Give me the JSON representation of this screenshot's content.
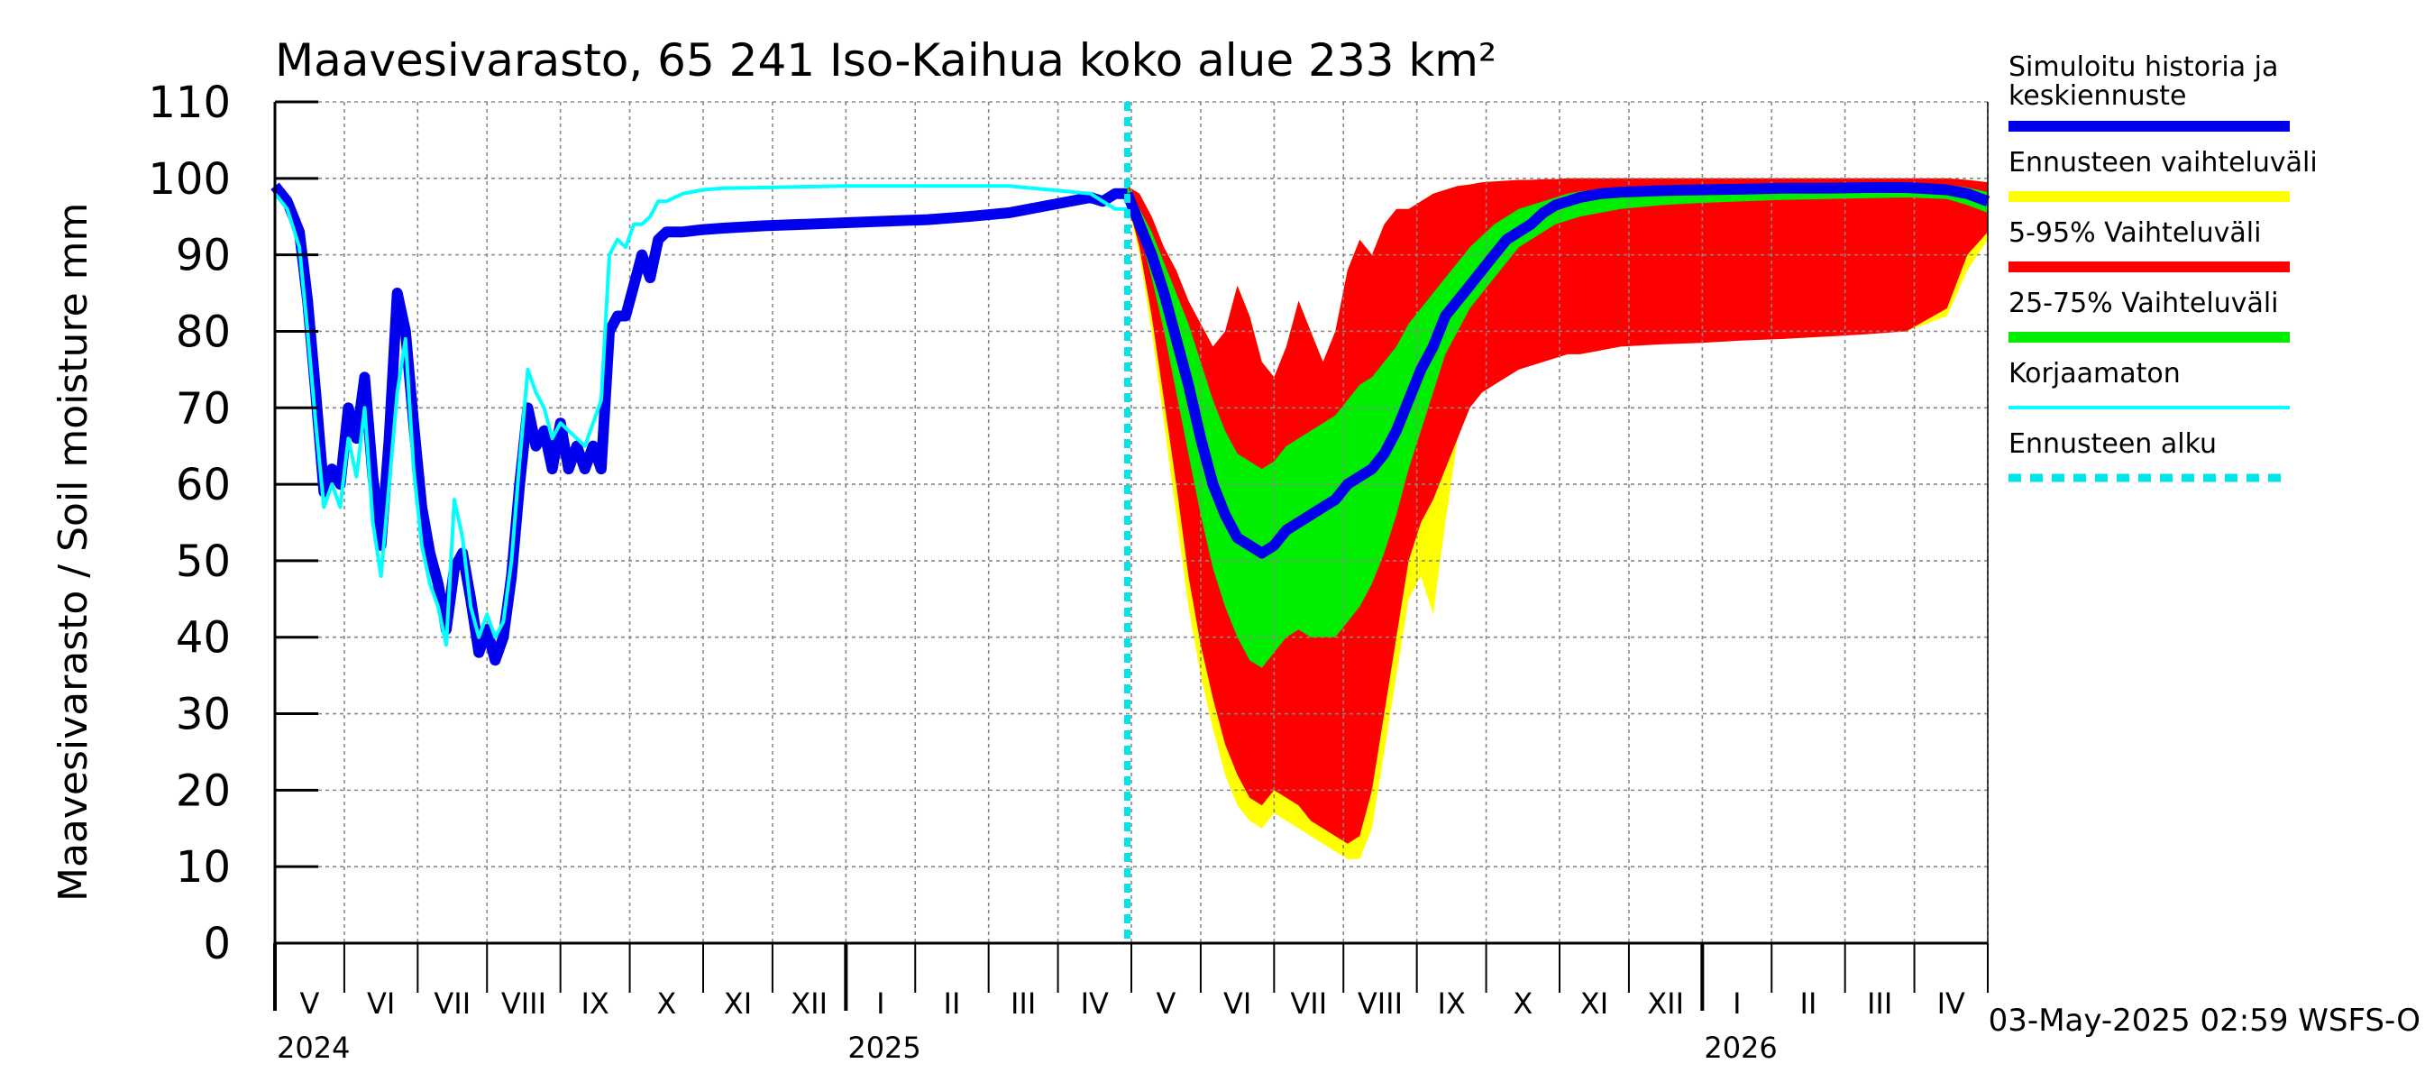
{
  "chart_data": {
    "type": "area",
    "title": "Maavesivarasto, 65 241 Iso-Kaihua koko alue 233 km²",
    "ylabel": "Maavesivarasto / Soil moisture   mm",
    "xlabel": "",
    "ylim": [
      0,
      110
    ],
    "y_ticks": [
      0,
      10,
      20,
      30,
      40,
      50,
      60,
      70,
      80,
      90,
      100,
      110
    ],
    "x_range_days": [
      0,
      420
    ],
    "forecast_start_day": 209,
    "x_ticks": [
      {
        "label": "V",
        "day": 0
      },
      {
        "label": "VI",
        "day": 17
      },
      {
        "label": "VII",
        "day": 35
      },
      {
        "label": "VIII",
        "day": 52
      },
      {
        "label": "IX",
        "day": 70
      },
      {
        "label": "X",
        "day": 87
      },
      {
        "label": "XI",
        "day": 105
      },
      {
        "label": "XII",
        "day": 122
      },
      {
        "label": "I",
        "day": 140
      },
      {
        "label": "II",
        "day": 157
      },
      {
        "label": "III",
        "day": 175
      },
      {
        "label": "IV",
        "day": 192
      },
      {
        "label": "V",
        "day": 210
      },
      {
        "label": "VI",
        "day": 227
      },
      {
        "label": "VII",
        "day": 245
      },
      {
        "label": "VIII",
        "day": 262
      },
      {
        "label": "IX",
        "day": 280
      },
      {
        "label": "X",
        "day": 297
      },
      {
        "label": "XI",
        "day": 315
      },
      {
        "label": "XII",
        "day": 332
      },
      {
        "label": "I",
        "day": 350
      },
      {
        "label": "II",
        "day": 367
      },
      {
        "label": "III",
        "day": 385
      },
      {
        "label": "IV",
        "day": 402
      },
      {
        "label": "",
        "day": 420
      }
    ],
    "year_labels": [
      {
        "label": "2024",
        "day": 0
      },
      {
        "label": "2025",
        "day": 140
      },
      {
        "label": "2026",
        "day": 350
      }
    ],
    "timestamp": "03-May-2025 02:59 WSFS-O",
    "legend": [
      {
        "label": "Simuloitu historia ja keskiennuste",
        "color": "#0000ee",
        "style": "thick"
      },
      {
        "label": "Ennusteen vaihteluväli",
        "color": "#ffff00",
        "style": "thick"
      },
      {
        "label": "5-95% Vaihteluväli",
        "color": "#ff0000",
        "style": "thick"
      },
      {
        "label": "25-75% Vaihteluväli",
        "color": "#00ee00",
        "style": "thick"
      },
      {
        "label": "Korjaamaton",
        "color": "#00ffff",
        "style": "thin"
      },
      {
        "label": "Ennusteen alku",
        "color": "#00e5e5",
        "style": "dashed"
      }
    ],
    "series": [
      {
        "name": "Simuloitu historia",
        "color": "#0000ee",
        "x": [
          0,
          3,
          6,
          8,
          10,
          12,
          14,
          16,
          18,
          20,
          22,
          24,
          26,
          28,
          30,
          32,
          34,
          36,
          38,
          40,
          42,
          44,
          46,
          48,
          50,
          52,
          54,
          56,
          58,
          60,
          62,
          64,
          66,
          68,
          70,
          72,
          74,
          76,
          78,
          80,
          82,
          84,
          86,
          88,
          90,
          92,
          94,
          96,
          98,
          100,
          105,
          110,
          120,
          130,
          140,
          150,
          160,
          170,
          180,
          190,
          200,
          203,
          206,
          209
        ],
        "y": [
          99,
          97,
          93,
          84,
          72,
          59,
          62,
          60,
          70,
          66,
          74,
          61,
          52,
          66,
          85,
          80,
          68,
          57,
          51,
          47,
          41,
          49,
          51,
          45,
          38,
          41,
          37,
          40,
          48,
          60,
          70,
          65,
          67,
          62,
          68,
          62,
          65,
          62,
          65,
          62,
          80,
          82,
          82,
          86,
          90,
          87,
          92,
          93,
          93,
          93,
          93.3,
          93.5,
          93.8,
          94,
          94.2,
          94.4,
          94.6,
          95,
          95.5,
          96.5,
          97.5,
          97,
          98,
          98
        ]
      },
      {
        "name": "Korjaamaton",
        "color": "#00ffff",
        "x": [
          0,
          3,
          6,
          8,
          10,
          12,
          14,
          16,
          18,
          20,
          22,
          24,
          26,
          28,
          30,
          32,
          34,
          36,
          38,
          40,
          42,
          44,
          46,
          48,
          50,
          52,
          54,
          56,
          58,
          60,
          62,
          64,
          66,
          68,
          70,
          72,
          74,
          76,
          78,
          80,
          82,
          84,
          86,
          88,
          90,
          92,
          94,
          96,
          98,
          100,
          105,
          110,
          120,
          130,
          140,
          150,
          160,
          170,
          180,
          190,
          200,
          203,
          206,
          209
        ],
        "y": [
          98,
          96,
          91,
          80,
          68,
          57,
          60,
          57,
          66,
          61,
          70,
          55,
          48,
          60,
          72,
          79,
          62,
          52,
          47,
          44,
          39,
          58,
          53,
          44,
          40,
          43,
          40,
          42,
          50,
          63,
          75,
          72,
          70,
          66,
          68,
          67,
          66,
          65,
          68,
          71,
          90,
          92,
          91,
          94,
          94,
          95,
          97,
          97,
          97.5,
          98,
          98.5,
          98.7,
          98.8,
          98.9,
          99,
          99,
          99,
          99,
          99,
          98.5,
          98,
          97,
          96,
          96
        ]
      },
      {
        "name": "Keskiennuste",
        "color": "#0000ee",
        "x": [
          209,
          212,
          215,
          218,
          221,
          224,
          227,
          230,
          233,
          236,
          239,
          242,
          245,
          248,
          251,
          254,
          257,
          260,
          263,
          266,
          269,
          272,
          275,
          278,
          281,
          284,
          287,
          290,
          293,
          296,
          299,
          302,
          305,
          308,
          311,
          314,
          317,
          320,
          325,
          330,
          340,
          350,
          360,
          370,
          380,
          390,
          400,
          410,
          415,
          420
        ],
        "y": [
          98,
          94,
          90,
          85,
          79,
          73,
          66,
          60,
          56,
          53,
          52,
          51,
          52,
          54,
          55,
          56,
          57,
          58,
          60,
          61,
          62,
          64,
          67,
          71,
          75,
          78,
          82,
          84,
          86,
          88,
          90,
          92,
          93,
          94,
          95.5,
          96.5,
          97,
          97.5,
          98,
          98.2,
          98.4,
          98.5,
          98.6,
          98.7,
          98.7,
          98.8,
          98.8,
          98.5,
          98,
          97
        ]
      }
    ],
    "bands": [
      {
        "name": "Ennusteen vaihteluväli",
        "color": "#ffff00",
        "x": [
          209,
          212,
          215,
          218,
          221,
          224,
          227,
          230,
          233,
          236,
          239,
          242,
          245,
          248,
          251,
          254,
          257,
          260,
          263,
          266,
          269,
          272,
          275,
          278,
          281,
          284,
          287,
          290,
          293,
          296,
          299,
          302,
          305,
          308,
          311,
          314,
          317,
          320,
          325,
          330,
          340,
          350,
          360,
          370,
          380,
          390,
          400,
          410,
          415,
          420
        ],
        "lower": [
          97,
          90,
          80,
          68,
          56,
          44,
          35,
          28,
          22,
          18,
          16,
          15,
          17,
          16,
          15,
          14,
          13,
          12,
          11,
          11,
          15,
          25,
          35,
          45,
          48,
          43,
          55,
          66,
          71,
          74,
          75,
          76,
          76.5,
          77,
          77.5,
          77.5,
          77.5,
          78,
          78,
          78.3,
          78.5,
          78.8,
          79,
          79.2,
          79.5,
          79.8,
          80,
          82,
          88,
          92
        ],
        "upper": [
          99,
          98,
          95,
          91,
          88,
          84,
          81,
          78,
          80,
          86,
          82,
          76,
          74,
          78,
          84,
          80,
          76,
          80,
          88,
          92,
          90,
          94,
          96,
          96,
          97,
          98,
          98.5,
          99,
          99.2,
          99.5,
          99.6,
          99.7,
          99.8,
          99.8,
          99.9,
          99.9,
          100,
          100,
          100,
          100,
          100,
          100,
          100,
          100,
          100,
          100,
          100,
          100,
          99.8,
          99.5
        ]
      },
      {
        "name": "5-95% Vaihteluväli",
        "color": "#ff0000",
        "x": [
          209,
          212,
          215,
          218,
          221,
          224,
          227,
          230,
          233,
          236,
          239,
          242,
          245,
          248,
          251,
          254,
          257,
          260,
          263,
          266,
          269,
          272,
          275,
          278,
          281,
          284,
          287,
          290,
          293,
          296,
          299,
          302,
          305,
          308,
          311,
          314,
          317,
          320,
          325,
          330,
          340,
          350,
          360,
          370,
          380,
          390,
          400,
          410,
          415,
          420
        ],
        "lower": [
          97,
          91,
          82,
          71,
          60,
          48,
          39,
          32,
          26,
          22,
          19,
          18,
          20,
          19,
          18,
          16,
          15,
          14,
          13,
          14,
          20,
          30,
          40,
          50,
          55,
          58,
          62,
          66,
          70,
          72,
          73,
          74,
          75,
          75.5,
          76,
          76.5,
          77,
          77,
          77.5,
          78,
          78.3,
          78.5,
          78.8,
          79,
          79.3,
          79.6,
          80,
          83,
          90,
          93
        ]
      },
      {
        "name": "25-75% Vaihteluväli",
        "color": "#00ee00",
        "x": [
          209,
          212,
          215,
          218,
          221,
          224,
          227,
          230,
          233,
          236,
          239,
          242,
          245,
          248,
          251,
          254,
          257,
          260,
          263,
          266,
          269,
          272,
          275,
          278,
          281,
          284,
          287,
          290,
          293,
          296,
          299,
          302,
          305,
          308,
          311,
          314,
          317,
          320,
          325,
          330,
          340,
          350,
          360,
          370,
          380,
          390,
          400,
          410,
          415,
          420
        ],
        "lower": [
          98,
          93,
          87,
          80,
          72,
          64,
          56,
          49,
          44,
          40,
          37,
          36,
          38,
          40,
          41,
          40,
          40,
          40,
          42,
          44,
          47,
          51,
          56,
          62,
          67,
          72,
          77,
          80,
          83,
          85,
          87,
          89,
          91,
          92,
          93,
          94,
          94.5,
          95,
          95.5,
          96,
          96.5,
          96.8,
          97,
          97.2,
          97.3,
          97.4,
          97.5,
          97.3,
          96.5,
          95.5
        ],
        "upper": [
          99,
          96,
          93,
          89,
          85,
          81,
          76,
          71,
          67,
          64,
          63,
          62,
          63,
          65,
          66,
          67,
          68,
          69,
          71,
          73,
          74,
          76,
          78,
          81,
          83,
          85,
          87,
          89,
          91,
          92.5,
          94,
          95,
          96,
          96.5,
          97,
          97.5,
          98,
          98.3,
          98.6,
          98.8,
          99,
          99.1,
          99.2,
          99.3,
          99.3,
          99.4,
          99.4,
          99.2,
          98.8,
          98.2
        ]
      }
    ]
  }
}
